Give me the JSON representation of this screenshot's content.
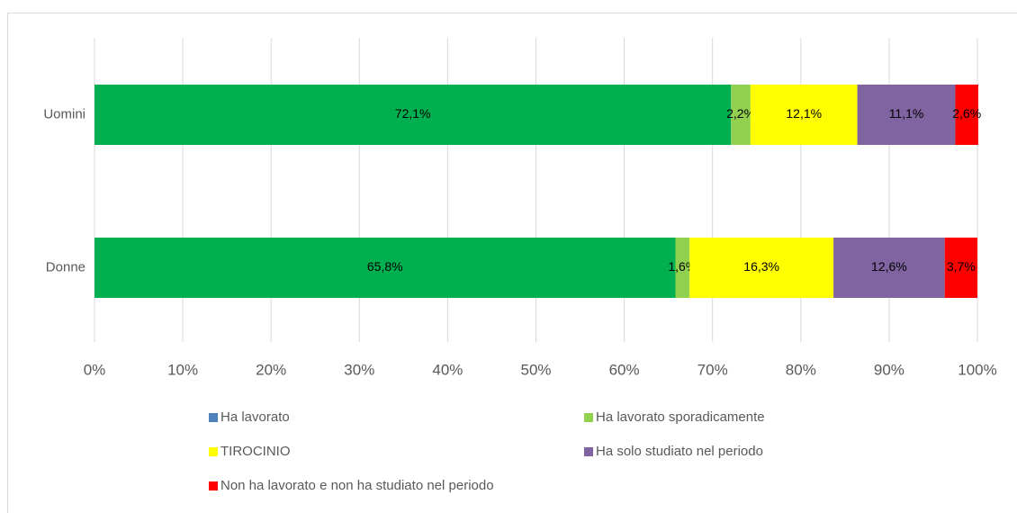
{
  "chart_data": {
    "type": "stacked_bar_horizontal",
    "categories": [
      "Uomini",
      "Donne"
    ],
    "series": [
      {
        "name": "Ha lavorato",
        "color": "#00b050",
        "legend_color": "#4f81bd",
        "values": [
          72.1,
          65.8
        ],
        "value_labels": [
          "72,1%",
          "65,8%"
        ]
      },
      {
        "name": "Ha lavorato sporadicamente",
        "color": "#92d050",
        "values": [
          2.2,
          1.6
        ],
        "value_labels": [
          "2,2%",
          "1,6%"
        ]
      },
      {
        "name": "TIROCINIO",
        "color": "#ffff00",
        "values": [
          12.1,
          16.3
        ],
        "value_labels": [
          "12,1%",
          "16,3%"
        ]
      },
      {
        "name": "Ha solo studiato nel periodo",
        "color": "#8064a2",
        "values": [
          11.1,
          12.6
        ],
        "value_labels": [
          "11,1%",
          "12,6%"
        ]
      },
      {
        "name": "Non ha lavorato e non ha studiato nel periodo",
        "color": "#ff0000",
        "values": [
          2.6,
          3.7
        ],
        "value_labels": [
          "2,6%",
          "3,7%"
        ]
      }
    ],
    "xlim": [
      0,
      100
    ],
    "xticks": [
      {
        "value": 0,
        "label": "0%"
      },
      {
        "value": 10,
        "label": "10%"
      },
      {
        "value": 20,
        "label": "20%"
      },
      {
        "value": 30,
        "label": "30%"
      },
      {
        "value": 40,
        "label": "40%"
      },
      {
        "value": 50,
        "label": "50%"
      },
      {
        "value": 60,
        "label": "60%"
      },
      {
        "value": 70,
        "label": "70%"
      },
      {
        "value": 80,
        "label": "80%"
      },
      {
        "value": 90,
        "label": "90%"
      },
      {
        "value": 100,
        "label": "100%"
      }
    ],
    "grid": true
  }
}
